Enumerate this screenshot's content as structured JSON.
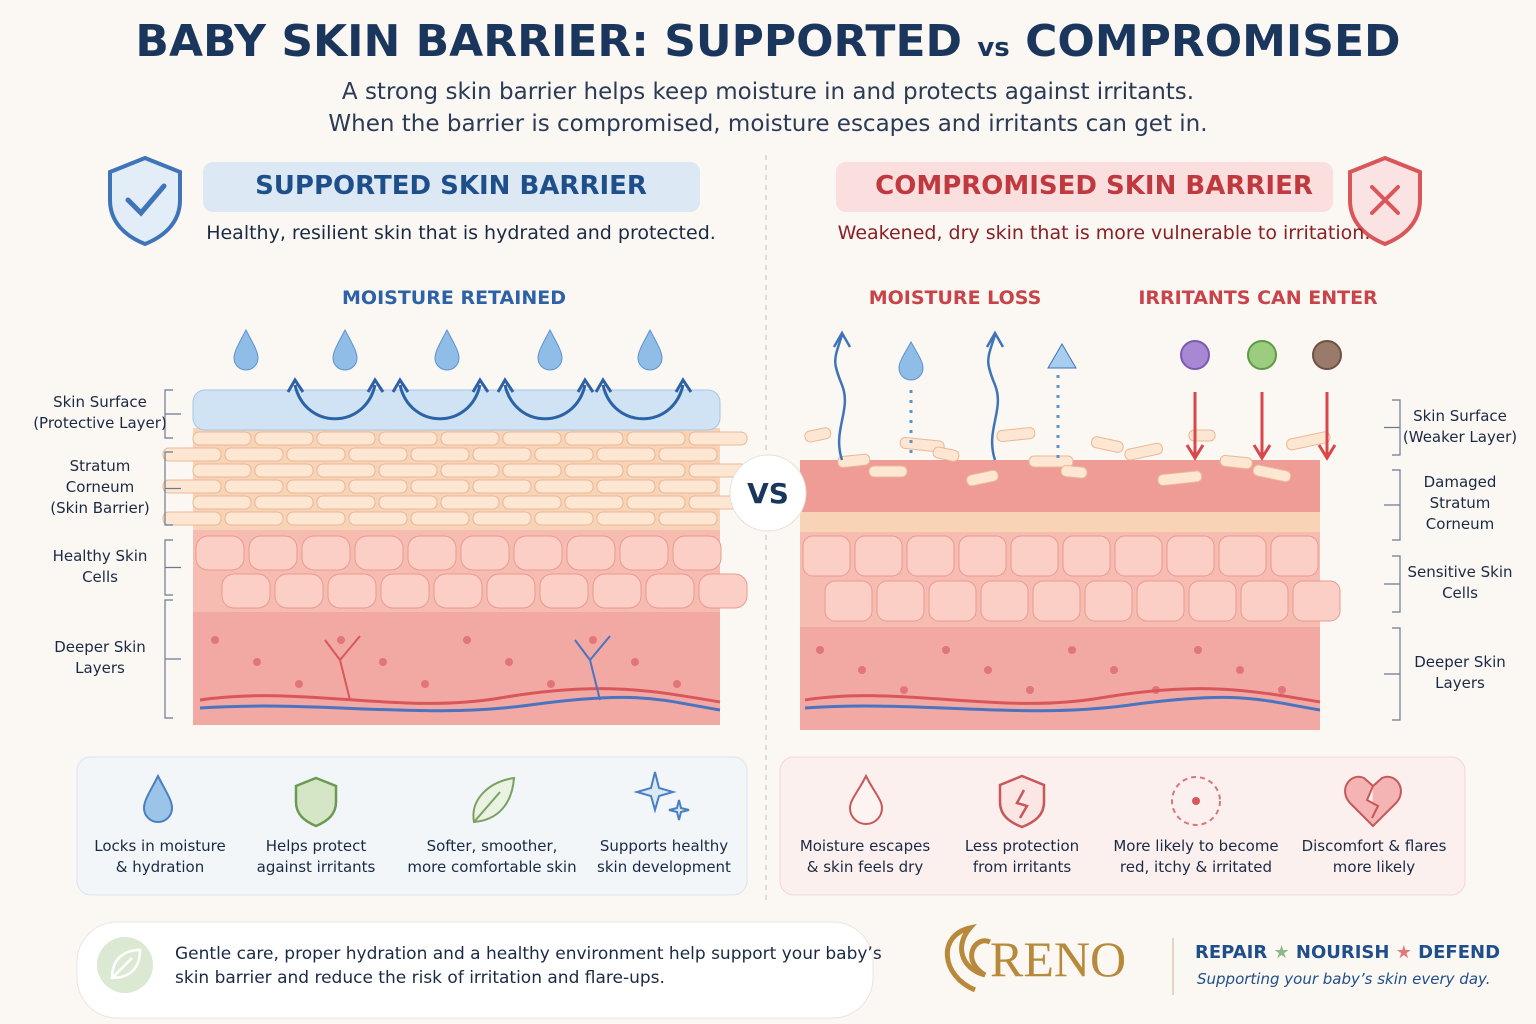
{
  "header": {
    "title_main": "BABY SKIN BARRIER: SUPPORTED",
    "title_vs": "vs",
    "title_end": "COMPROMISED",
    "subtitle_lines": [
      "A strong skin barrier helps keep moisture in and protects against irritants.",
      "When the barrier is compromised, moisture escapes and irritants can get in."
    ]
  },
  "supported": {
    "title": "SUPPORTED SKIN BARRIER",
    "description": "Healthy, resilient skin that is hydrated and protected.",
    "diagram_labels": [
      "MOISTURE RETAINED"
    ],
    "layer_labels": [
      [
        "Skin Surface",
        "(Protective Layer)"
      ],
      [
        "Stratum",
        "Corneum",
        "(Skin Barrier)"
      ],
      [
        "Healthy Skin",
        "Cells"
      ],
      [
        "Deeper Skin",
        "Layers"
      ]
    ],
    "benefits": [
      [
        "Locks in moisture",
        "& hydration"
      ],
      [
        "Helps protect",
        "against irritants"
      ],
      [
        "Softer, smoother,",
        "more comfortable skin"
      ],
      [
        "Supports healthy",
        "skin development"
      ]
    ]
  },
  "vs_label": "VS",
  "compromised": {
    "title": "COMPROMISED SKIN BARRIER",
    "description": "Weakened, dry skin that is more vulnerable to irritation.",
    "diagram_labels": [
      "MOISTURE LOSS",
      "IRRITANTS CAN ENTER"
    ],
    "layer_labels": [
      [
        "Skin Surface",
        "(Weaker Layer)"
      ],
      [
        "Damaged",
        "Stratum",
        "Corneum"
      ],
      [
        "Sensitive Skin",
        "Cells"
      ],
      [
        "Deeper Skin",
        "Layers"
      ]
    ],
    "effects": [
      [
        "Moisture escapes",
        "& skin feels dry"
      ],
      [
        "Less protection",
        "from irritants"
      ],
      [
        "More likely to become",
        "red, itchy & irritated"
      ],
      [
        "Discomfort & flares",
        "more likely"
      ]
    ]
  },
  "footer": {
    "note_lines": [
      "Gentle care, proper hydration and a healthy environment help support your baby’s",
      "skin barrier and reduce the risk of irritation and flare-ups."
    ],
    "brand": "RENO",
    "tagline": [
      "REPAIR",
      "NOURISH",
      "DEFEND"
    ],
    "slogan": "Supporting your baby’s skin every day."
  }
}
